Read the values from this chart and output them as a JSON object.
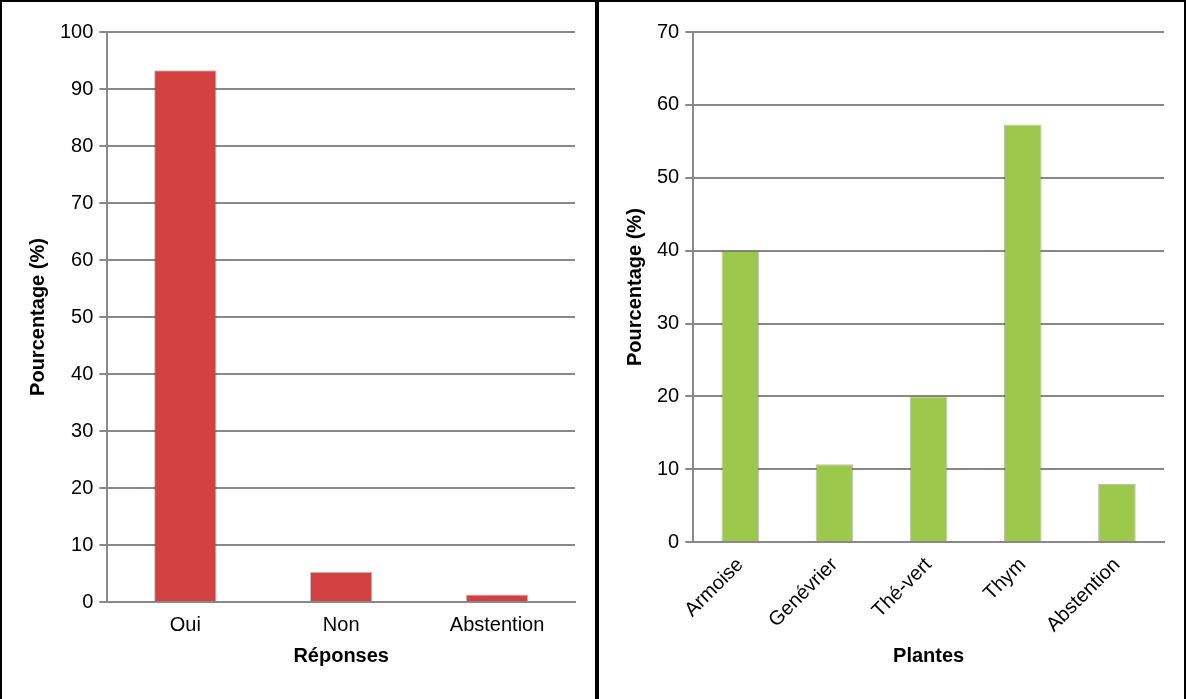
{
  "chart_data": [
    {
      "type": "bar",
      "xlabel": "Réponses",
      "ylabel": "Pourcentage (%)",
      "categories": [
        "Oui",
        "Non",
        "Abstention"
      ],
      "values": [
        93.3,
        5.3,
        1.3
      ],
      "color": "#d24040",
      "ylim": [
        0,
        100
      ],
      "yticks": [
        0,
        10,
        20,
        30,
        40,
        50,
        60,
        70,
        80,
        90,
        100
      ],
      "grid": "y",
      "legend": false
    },
    {
      "type": "bar",
      "xlabel": "Plantes",
      "ylabel": "Pourcentage (%)",
      "categories": [
        "Armoise",
        "Genévrier",
        "Thé-vert",
        "Thym",
        "Abstention"
      ],
      "values": [
        40,
        10.7,
        20,
        57.3,
        8
      ],
      "color": "#9cc84c",
      "ylim": [
        0,
        70
      ],
      "yticks": [
        0,
        10,
        20,
        30,
        40,
        50,
        60,
        70
      ],
      "grid": "y",
      "legend": false
    }
  ]
}
